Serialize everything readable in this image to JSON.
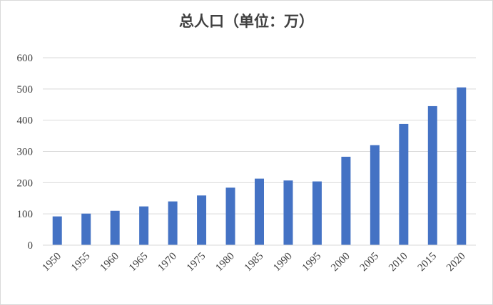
{
  "chart_data": {
    "type": "bar",
    "title": "总人口（单位：万）",
    "categories": [
      "1950",
      "1955",
      "1960",
      "1965",
      "1970",
      "1975",
      "1980",
      "1985",
      "1990",
      "1995",
      "2000",
      "2005",
      "2010",
      "2015",
      "2020"
    ],
    "series": [
      {
        "values": [
          92,
          101,
          110,
          124,
          140,
          159,
          184,
          213,
          207,
          204,
          283,
          320,
          388,
          445,
          505
        ]
      }
    ],
    "ylim": [
      0,
      600
    ],
    "yticks": [
      0,
      100,
      200,
      300,
      400,
      500,
      600
    ],
    "grid": true,
    "legend": "none",
    "bar_color": "#4472c4",
    "grid_color": "#d9d9d9"
  }
}
